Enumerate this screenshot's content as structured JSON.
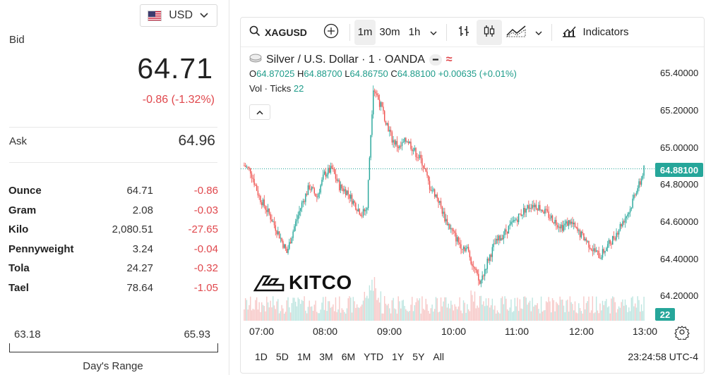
{
  "currency": {
    "code": "USD",
    "flag_icon": "us-flag-icon"
  },
  "bid": {
    "label": "Bid",
    "price": "64.71",
    "change": "-0.86 (-1.32%)"
  },
  "ask": {
    "label": "Ask",
    "price": "64.96"
  },
  "units": [
    {
      "name": "Ounce",
      "value": "64.71",
      "change": "-0.86"
    },
    {
      "name": "Gram",
      "value": "2.08",
      "change": "-0.03"
    },
    {
      "name": "Kilo",
      "value": "2,080.51",
      "change": "-27.65"
    },
    {
      "name": "Pennyweight",
      "value": "3.24",
      "change": "-0.04"
    },
    {
      "name": "Tola",
      "value": "24.27",
      "change": "-0.32"
    },
    {
      "name": "Tael",
      "value": "78.64",
      "change": "-1.05"
    }
  ],
  "days_range": {
    "low": "63.18",
    "high": "65.93",
    "label": "Day's Range"
  },
  "toolbar": {
    "symbol": "XAGUSD",
    "intervals": [
      "1m",
      "30m",
      "1h"
    ],
    "active_interval": "1m",
    "indicators_label": "Indicators"
  },
  "legend": {
    "title": "Silver / U.S. Dollar · 1 · OANDA",
    "o_label": "O",
    "o": "64.87025",
    "h_label": "H",
    "h": "64.88700",
    "l_label": "L",
    "l": "64.86750",
    "c_label": "C",
    "c": "64.88100",
    "change": "+0.00635 (+0.01%)",
    "vol_label": "Vol · Ticks",
    "vol_value": "22"
  },
  "last_price_tag": "64.88100",
  "volume_tag": "22",
  "watermark": "KITCO",
  "ranges": [
    "1D",
    "5D",
    "1M",
    "3M",
    "6M",
    "YTD",
    "1Y",
    "5Y",
    "All"
  ],
  "clock": "23:24:58 UTC-4",
  "colors": {
    "up": "#26a69a",
    "down": "#ef5350",
    "negative_text": "#e0474c"
  },
  "chart_data": {
    "type": "candlestick",
    "x_ticks": [
      "07:00",
      "08:00",
      "09:00",
      "10:00",
      "11:00",
      "12:00",
      "13:00"
    ],
    "y_ticks": [
      "65.40000",
      "65.20000",
      "65.00000",
      "64.80000",
      "64.60000",
      "64.40000",
      "64.20000"
    ],
    "ylim": [
      64.14,
      65.44
    ],
    "close_path": [
      [
        0,
        64.9
      ],
      [
        5,
        64.87
      ],
      [
        12,
        64.72
      ],
      [
        20,
        64.62
      ],
      [
        28,
        64.5
      ],
      [
        34,
        64.4
      ],
      [
        40,
        64.55
      ],
      [
        46,
        64.68
      ],
      [
        52,
        64.78
      ],
      [
        58,
        64.72
      ],
      [
        64,
        64.85
      ],
      [
        70,
        64.88
      ],
      [
        76,
        64.78
      ],
      [
        82,
        64.75
      ],
      [
        88,
        64.68
      ],
      [
        94,
        64.62
      ],
      [
        98,
        64.66
      ],
      [
        100,
        64.95
      ],
      [
        103,
        65.35
      ],
      [
        106,
        65.3
      ],
      [
        112,
        65.18
      ],
      [
        118,
        65.05
      ],
      [
        124,
        65.0
      ],
      [
        130,
        65.05
      ],
      [
        136,
        64.98
      ],
      [
        142,
        64.92
      ],
      [
        148,
        64.78
      ],
      [
        154,
        64.72
      ],
      [
        160,
        64.6
      ],
      [
        166,
        64.52
      ],
      [
        172,
        64.45
      ],
      [
        178,
        64.42
      ],
      [
        184,
        64.3
      ],
      [
        188,
        64.22
      ],
      [
        194,
        64.35
      ],
      [
        200,
        64.45
      ],
      [
        206,
        64.5
      ],
      [
        212,
        64.55
      ],
      [
        218,
        64.6
      ],
      [
        224,
        64.65
      ],
      [
        230,
        64.68
      ],
      [
        236,
        64.66
      ],
      [
        242,
        64.62
      ],
      [
        248,
        64.58
      ],
      [
        254,
        64.55
      ],
      [
        260,
        64.58
      ],
      [
        266,
        64.52
      ],
      [
        272,
        64.48
      ],
      [
        278,
        64.42
      ],
      [
        284,
        64.38
      ],
      [
        290,
        64.44
      ],
      [
        296,
        64.5
      ],
      [
        302,
        64.58
      ],
      [
        308,
        64.65
      ],
      [
        312,
        64.75
      ],
      [
        316,
        64.8
      ],
      [
        319,
        64.88
      ]
    ],
    "current_price": 64.881
  }
}
